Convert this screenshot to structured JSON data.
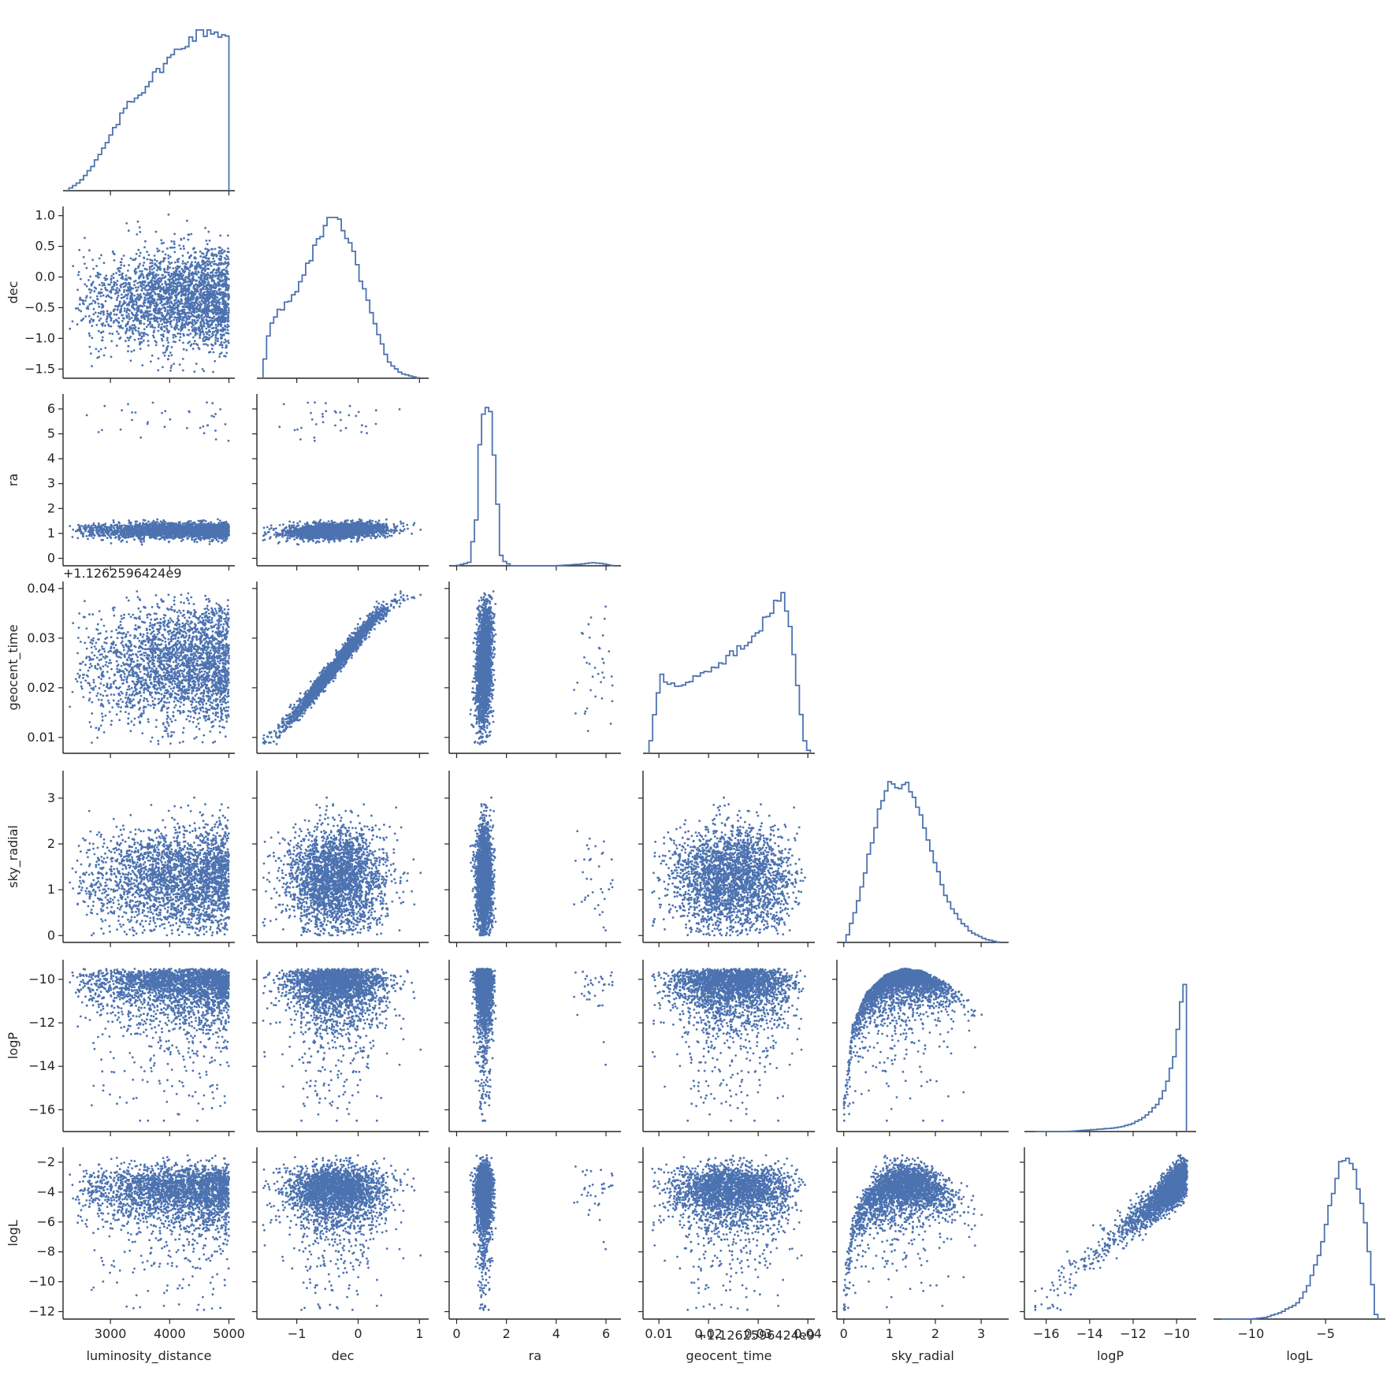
{
  "figure": {
    "type": "pairplot-corner",
    "color": "#4c72b0",
    "axis_color": "#262626",
    "variables": [
      "luminosity_distance",
      "dec",
      "ra",
      "geocent_time",
      "sky_radial",
      "logP",
      "logL"
    ],
    "geocent_offset_label": "+1.1262596424e9"
  },
  "chart_data": {
    "type": "pairplot",
    "ranges": {
      "luminosity_distance": [
        2200,
        5100
      ],
      "dec": [
        -1.65,
        1.15
      ],
      "ra": [
        -0.3,
        6.6
      ],
      "geocent_time": [
        0.0068,
        0.0414
      ],
      "sky_radial": [
        -0.15,
        3.6
      ],
      "logP": [
        -17.0,
        -9.1
      ],
      "logL": [
        -12.5,
        -1.0
      ]
    },
    "ticks": {
      "luminosity_distance": [
        3000,
        4000,
        5000
      ],
      "dec": [
        -1,
        0,
        1
      ],
      "ra": [
        0,
        2,
        4,
        6
      ],
      "geocent_time": [
        0.01,
        0.02,
        0.03,
        0.04
      ],
      "sky_radial": [
        0,
        1,
        2,
        3
      ],
      "logP": [
        -16,
        -14,
        -12,
        -10
      ],
      "logL": [
        -10,
        -5
      ]
    },
    "row_ticks": {
      "dec": [
        1.0,
        0.5,
        0.0,
        -0.5,
        -1.0,
        -1.5
      ],
      "ra": [
        6,
        5,
        4,
        3,
        2,
        1,
        0
      ],
      "geocent_time": [
        0.04,
        0.03,
        0.02,
        0.01
      ],
      "sky_radial": [
        3,
        2,
        1,
        0
      ],
      "logP": [
        -10,
        -12,
        -14,
        -16
      ],
      "logL": [
        -2,
        -4,
        -6,
        -8,
        -10,
        -12
      ]
    },
    "tick_text": {
      "luminosity_distance": [
        "3000",
        "4000",
        "5000"
      ],
      "dec_x": [
        "−1",
        "0",
        "1"
      ],
      "ra_x": [
        "0",
        "2",
        "4",
        "6"
      ],
      "geocent_time_x": [
        "0.01",
        "0.02",
        "0.03",
        "0.04"
      ],
      "sky_radial_x": [
        "0",
        "1",
        "2",
        "3"
      ],
      "logP_x": [
        "−16",
        "−14",
        "−12",
        "−10"
      ],
      "logL_x": [
        "−10",
        "−5"
      ],
      "dec_y": [
        "1.0",
        "0.5",
        "0.0",
        "−0.5",
        "−1.0",
        "−1.5"
      ],
      "ra_y": [
        "6",
        "5",
        "4",
        "3",
        "2",
        "1",
        "0"
      ],
      "geocent_time_y": [
        "0.04",
        "0.03",
        "0.02",
        "0.01"
      ],
      "sky_radial_y": [
        "3",
        "2",
        "1",
        "0"
      ],
      "logP_y": [
        "−10",
        "−12",
        "−14",
        "−16"
      ],
      "logL_y": [
        "−2",
        "−4",
        "−6",
        "−8",
        "−10",
        "−12"
      ]
    },
    "hist": {
      "luminosity_distance": {
        "x": [
          2300,
          2500,
          2700,
          2900,
          3100,
          3300,
          3500,
          3700,
          3900,
          4100,
          4300,
          4500,
          4700,
          4900,
          5000
        ],
        "y": [
          0.01,
          0.06,
          0.15,
          0.27,
          0.4,
          0.55,
          0.6,
          0.7,
          0.78,
          0.86,
          0.93,
          0.98,
          1.0,
          0.97,
          0.95
        ]
      },
      "dec": {
        "x": [
          -1.55,
          -1.45,
          -1.3,
          -1.1,
          -0.9,
          -0.7,
          -0.5,
          -0.4,
          -0.3,
          -0.1,
          0.1,
          0.3,
          0.5,
          0.7,
          0.9,
          1.0
        ],
        "y": [
          0.05,
          0.3,
          0.42,
          0.48,
          0.62,
          0.82,
          0.98,
          1.0,
          0.96,
          0.8,
          0.55,
          0.3,
          0.1,
          0.03,
          0.01,
          0.0
        ]
      },
      "ra": {
        "x": [
          0,
          0.5,
          0.8,
          1.0,
          1.2,
          1.4,
          1.6,
          1.8,
          2.2,
          3,
          4,
          5,
          5.5,
          6,
          6.3
        ],
        "y": [
          0.0,
          0.02,
          0.3,
          0.95,
          1.0,
          0.92,
          0.5,
          0.04,
          0.0,
          0.0,
          0.0,
          0.01,
          0.02,
          0.01,
          0.0
        ]
      },
      "geocent_time": {
        "x": [
          0.008,
          0.009,
          0.0105,
          0.012,
          0.015,
          0.018,
          0.021,
          0.024,
          0.027,
          0.03,
          0.032,
          0.0335,
          0.035,
          0.0365,
          0.038,
          0.0395,
          0.0405
        ],
        "y": [
          0.0,
          0.22,
          0.48,
          0.42,
          0.44,
          0.48,
          0.52,
          0.6,
          0.67,
          0.76,
          0.85,
          0.95,
          1.0,
          0.8,
          0.4,
          0.05,
          0.0
        ]
      },
      "sky_radial": {
        "x": [
          0.05,
          0.2,
          0.4,
          0.6,
          0.8,
          1.0,
          1.2,
          1.4,
          1.6,
          1.8,
          2.0,
          2.2,
          2.5,
          2.8,
          3.1,
          3.4
        ],
        "y": [
          0.01,
          0.15,
          0.35,
          0.6,
          0.85,
          0.98,
          0.97,
          1.0,
          0.85,
          0.7,
          0.5,
          0.3,
          0.15,
          0.06,
          0.02,
          0.0
        ]
      },
      "logP": {
        "x": [
          -16.5,
          -15,
          -14,
          -13,
          -12.5,
          -12,
          -11.5,
          -11,
          -10.6,
          -10.3,
          -10.0,
          -9.8,
          -9.65,
          -9.55
        ],
        "y": [
          0.0,
          0.0,
          0.01,
          0.02,
          0.03,
          0.05,
          0.09,
          0.15,
          0.24,
          0.36,
          0.55,
          0.78,
          1.0,
          0.6
        ]
      },
      "logL": {
        "x": [
          -12,
          -10,
          -9,
          -8,
          -7,
          -6.5,
          -6,
          -5.5,
          -5,
          -4.5,
          -4,
          -3.5,
          -3,
          -2.5,
          -2,
          -1.7,
          -1.5
        ],
        "y": [
          0.0,
          0.0,
          0.01,
          0.04,
          0.09,
          0.15,
          0.24,
          0.38,
          0.58,
          0.78,
          0.95,
          1.0,
          0.92,
          0.7,
          0.35,
          0.05,
          0.0
        ]
      }
    },
    "relations": {
      "dec_geocent_time": {
        "x": [
          -1.5,
          -1.2,
          -0.9,
          -0.6,
          -0.3,
          0.0,
          0.3,
          0.6,
          0.95
        ],
        "y": [
          0.0095,
          0.0125,
          0.0165,
          0.021,
          0.0255,
          0.03,
          0.0345,
          0.037,
          0.039
        ]
      },
      "logP_upper_vs_sky_radial": {
        "x": [
          0.0,
          0.2,
          0.5,
          0.9,
          1.3,
          1.7,
          2.2,
          2.7,
          3.2,
          3.5
        ],
        "y": [
          -15.5,
          -12.0,
          -10.6,
          -9.8,
          -9.5,
          -9.6,
          -10.1,
          -10.8,
          -11.8,
          -12.6
        ]
      }
    }
  }
}
